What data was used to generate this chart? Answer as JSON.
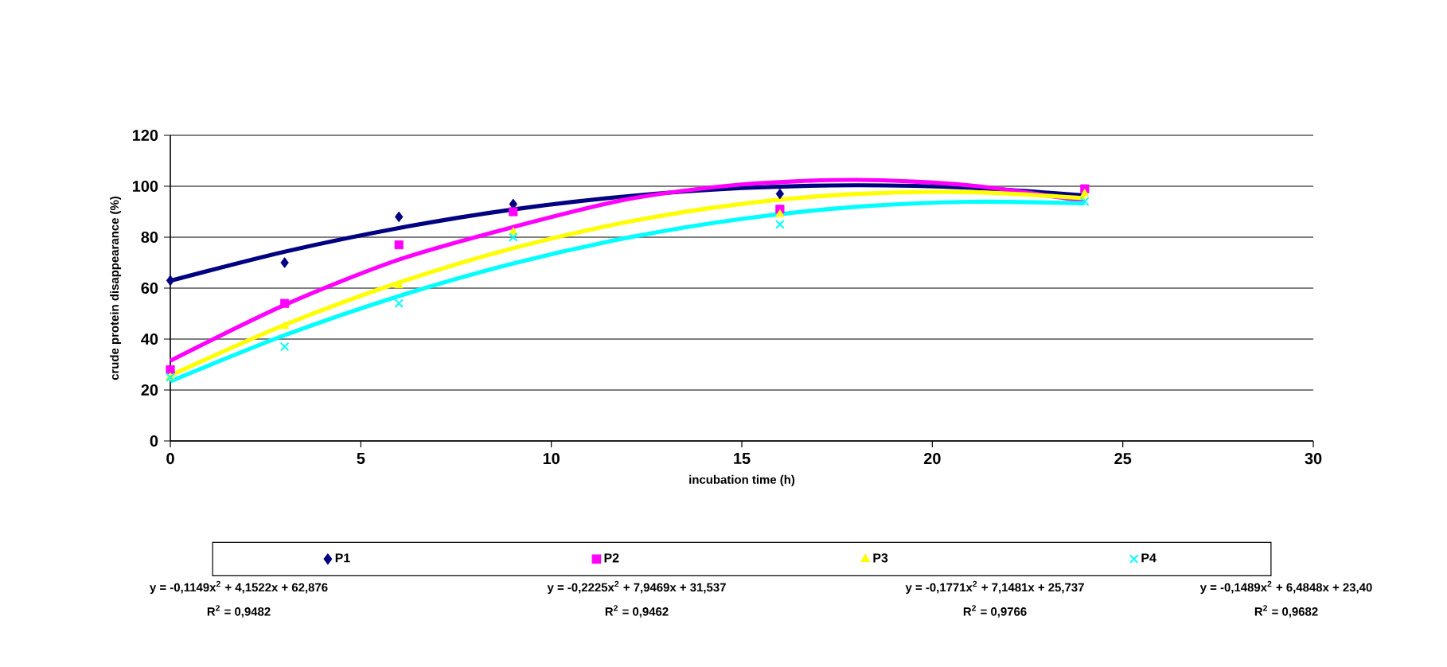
{
  "chart_data": {
    "type": "scatter",
    "xlabel": "incubation time  (h)",
    "ylabel": "crude protein disappearance (%)",
    "xlim": [
      0,
      30
    ],
    "xticks": [
      0,
      5,
      10,
      15,
      20,
      25,
      30
    ],
    "ylim": [
      0,
      120
    ],
    "yticks": [
      0,
      20,
      40,
      60,
      80,
      100,
      120
    ],
    "grid": "y",
    "legend": "bottom",
    "series": [
      {
        "name": "P1",
        "color": "#000080",
        "marker": "diamond",
        "x": [
          0,
          3,
          6,
          9,
          16
        ],
        "values": [
          63,
          70,
          88,
          93,
          97
        ]
      },
      {
        "name": "P2",
        "color": "#ff00ff",
        "marker": "square",
        "x": [
          0,
          3,
          6,
          9,
          16,
          24
        ],
        "values": [
          28,
          54,
          77,
          90,
          91,
          99
        ]
      },
      {
        "name": "P3",
        "color": "#ffff00",
        "marker": "triangle",
        "x": [
          0,
          3,
          6,
          9,
          16,
          24
        ],
        "values": [
          25,
          45,
          61,
          82,
          89,
          97
        ]
      },
      {
        "name": "P4",
        "color": "#00ffff",
        "marker": "cross",
        "x": [
          0,
          3,
          6,
          9,
          16,
          24
        ],
        "values": [
          25,
          37,
          54,
          80,
          85,
          94
        ]
      },
      {
        "type": "line",
        "color": "#000080",
        "marker": "none",
        "x": [
          0,
          3,
          6,
          9,
          12,
          15,
          18,
          21,
          24
        ],
        "values": [
          62.9,
          74.3,
          83.6,
          90.9,
          96.1,
          99.3,
          100.4,
          99.4,
          96.4
        ]
      },
      {
        "type": "line",
        "color": "#ff00ff",
        "marker": "none",
        "x": [
          0,
          3,
          6,
          9,
          12,
          15,
          18,
          21,
          24
        ],
        "values": [
          31.5,
          53.4,
          71.2,
          84.0,
          94.9,
          100.7,
          102.5,
          100.3,
          94.1
        ]
      },
      {
        "type": "line",
        "color": "#ffff00",
        "marker": "none",
        "x": [
          0,
          3,
          6,
          9,
          12,
          15,
          18,
          21,
          24
        ],
        "values": [
          25.7,
          45.6,
          62.2,
          75.7,
          86.0,
          93.1,
          97.0,
          97.7,
          95.3
        ]
      },
      {
        "type": "line",
        "color": "#00ffff",
        "marker": "none",
        "x": [
          0,
          3,
          6,
          9,
          12,
          15,
          18,
          21,
          24
        ],
        "values": [
          23.4,
          41.5,
          56.9,
          69.7,
          79.8,
          87.2,
          91.9,
          93.9,
          93.3
        ]
      }
    ],
    "annotations": [
      "y = -0,1149x$^{2}$ + 4,1522x + 62,876",
      "R$^{2}$ = 0,9482",
      "y = -0,2225x$^{2}$ + 7,9469x + 31,537",
      "R$^{2}$ = 0,9462",
      "y = -0,1771x$^{2}$ + 7,1481x + 25,737",
      "R$^{2}$ = 0,9766",
      "y = -0,1489x$^{2}$ + 6,4848x + 23,40",
      "R$^{2}$ = 0,9682"
    ]
  }
}
